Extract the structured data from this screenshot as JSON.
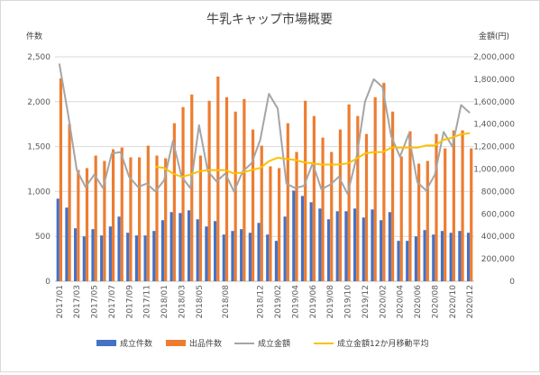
{
  "chart_data": {
    "type": "bar",
    "title": "牛乳キャップ市場概要",
    "left_axis_label": "件数",
    "right_axis_label": "金額(円)",
    "left_ylim": [
      0,
      2500
    ],
    "right_ylim": [
      0,
      2000000
    ],
    "left_ticks": [
      "0",
      "500",
      "1,000",
      "1,500",
      "2,000",
      "2,500"
    ],
    "right_ticks": [
      "0",
      "200,000",
      "400,000",
      "600,000",
      "800,000",
      "1,000,000",
      "1,200,000",
      "1,400,000",
      "1,600,000",
      "1,800,000",
      "2,000,000"
    ],
    "grid": true,
    "legend_position": "bottom",
    "categories": [
      "2017/01",
      "2017/02",
      "2017/03",
      "2017/04",
      "2017/05",
      "2017/06",
      "2017/07",
      "2017/08",
      "2017/09",
      "2017/10",
      "2017/11",
      "2017/12",
      "2018/01",
      "2018/02",
      "2018/03",
      "2018/04",
      "2018/05",
      "2018/06",
      "2018/07",
      "2018/08",
      "2018/09",
      "2018/10",
      "2018/11",
      "2018/12",
      "2019/01",
      "2019/02",
      "2019/03",
      "2019/04",
      "2019/05",
      "2019/06",
      "2019/07",
      "2019/08",
      "2019/09",
      "2019/10",
      "2019/11",
      "2019/12",
      "2020/01",
      "2020/02",
      "2020/03",
      "2020/04",
      "2020/05",
      "2020/06",
      "2020/07",
      "2020/08",
      "2020/09",
      "2020/10",
      "2020/11",
      "2020/12"
    ],
    "tick_labels": [
      "2017/01",
      "2017/03",
      "2017/05",
      "2017/07",
      "2017/09",
      "2017/11",
      "2018/01",
      "2018/03",
      "2018/05",
      "2018/08",
      "2018/12",
      "2019/02",
      "2019/04",
      "2019/06",
      "2019/08",
      "2019/10",
      "2019/12",
      "2020/02",
      "2020/04",
      "2020/06",
      "2020/08",
      "2020/10",
      "2020/12"
    ],
    "series": [
      {
        "name": "成立件数",
        "axis": "left",
        "type": "bar",
        "color": "#4472C4",
        "values": [
          920,
          820,
          590,
          500,
          580,
          510,
          610,
          720,
          540,
          510,
          510,
          560,
          680,
          770,
          760,
          790,
          690,
          610,
          670,
          520,
          560,
          580,
          540,
          650,
          520,
          450,
          720,
          1010,
          950,
          880,
          810,
          690,
          780,
          780,
          810,
          710,
          800,
          680,
          770,
          450,
          450,
          500,
          570,
          520,
          560,
          540,
          560,
          540
        ]
      },
      {
        "name": "出品件数",
        "axis": "left",
        "type": "bar",
        "color": "#ED7D31",
        "values": [
          2260,
          1750,
          1240,
          1260,
          1400,
          1340,
          1470,
          1490,
          1380,
          1380,
          1510,
          1400,
          1370,
          1760,
          1940,
          2080,
          1400,
          2010,
          2280,
          2050,
          1890,
          2030,
          1690,
          1510,
          1280,
          1260,
          1760,
          1440,
          2010,
          1840,
          1600,
          1440,
          1690,
          1970,
          1840,
          1640,
          2050,
          2210,
          1890,
          1390,
          1670,
          1310,
          1340,
          1640,
          1480,
          1680,
          1680,
          1480
        ]
      },
      {
        "name": "成立金額",
        "axis": "right",
        "type": "line",
        "color": "#A5A5A5",
        "values": [
          1940000,
          1490000,
          990000,
          840000,
          950000,
          830000,
          1140000,
          1150000,
          930000,
          840000,
          870000,
          800000,
          900000,
          1250000,
          930000,
          830000,
          1390000,
          980000,
          890000,
          960000,
          800000,
          980000,
          1050000,
          1260000,
          1670000,
          1540000,
          870000,
          830000,
          850000,
          1050000,
          820000,
          860000,
          930000,
          780000,
          1090000,
          1600000,
          1800000,
          1730000,
          1290000,
          1110000,
          1310000,
          880000,
          810000,
          950000,
          1330000,
          1200000,
          1570000,
          1500000
        ]
      },
      {
        "name": "成立金額12か月移動平均",
        "axis": "right",
        "type": "line",
        "color": "#FFC000",
        "values": [
          null,
          null,
          null,
          null,
          null,
          null,
          null,
          null,
          null,
          null,
          null,
          1020000,
          1010000,
          960000,
          930000,
          950000,
          980000,
          990000,
          990000,
          990000,
          960000,
          970000,
          990000,
          1010000,
          1070000,
          1100000,
          1090000,
          1080000,
          1060000,
          1050000,
          1040000,
          1040000,
          1040000,
          1050000,
          1090000,
          1140000,
          1150000,
          1150000,
          1190000,
          1190000,
          1190000,
          1190000,
          1210000,
          1210000,
          1260000,
          1280000,
          1310000,
          1320000
        ]
      }
    ]
  }
}
